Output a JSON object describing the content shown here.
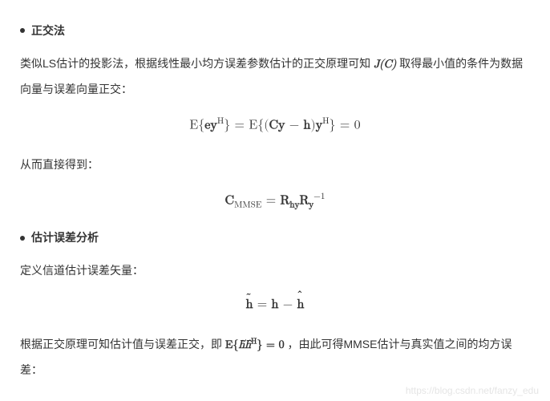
{
  "section1": {
    "title": "正交法",
    "para1_part1": "类似LS估计的投影法，根据线性最小均方误差参数估计的正交原理可知 ",
    "inline_jc": "J(C)",
    "para1_part2": " 取得最小值的条件为数据向量与误差向量正交：",
    "formula1_html": "<span class=\"roman\">E{</span><span class=\"bold\">ey</span><span class=\"sup\">H</span><span class=\"roman\">} = E{(</span><span class=\"bold\">Cy</span><span class=\"roman\"> − </span><span class=\"bold\">h</span><span class=\"roman\">)</span><span class=\"bold\">y</span><span class=\"sup\">H</span><span class=\"roman\">} = 0</span>",
    "para2": "从而直接得到：",
    "formula2_html": "<span class=\"bold\">C</span><span class=\"sub roman\">MMSE</span><span class=\"roman\"> = </span><span class=\"bold\">R</span><span class=\"sub bold\">hy</span><span class=\"bold\">R</span><span class=\"sub bold\">y</span><span class=\"sup\">−1</span>"
  },
  "section2": {
    "title": "估计误差分析",
    "para1": "定义信道估计误差矢量：",
    "formula3_html": "<span class=\"bold\" style=\"position:relative;\">h<span style=\"position:absolute;left:0;top:-0.7em;font-size:0.85em;\">˜</span></span><span class=\"roman\"> = </span><span class=\"bold\">h</span><span class=\"roman\"> − </span><span class=\"bold\" style=\"position:relative;\">h<span style=\"position:absolute;left:0;top:-0.85em;font-size:0.85em;\">ˆ</span></span>",
    "para2_part1": "根据正交原理可知估计值与误差正交，即 ",
    "inline_exp_html": "<span class=\"upright\">E{</span>h̃ĥ<span class=\"sup upright\">H</span><span class=\"upright\">} = 0</span>",
    "para2_part2": " ，由此可得MMSE估计与真实值之间的均方误差："
  },
  "watermark": "https://blog.csdn.net/fanzy_edu"
}
